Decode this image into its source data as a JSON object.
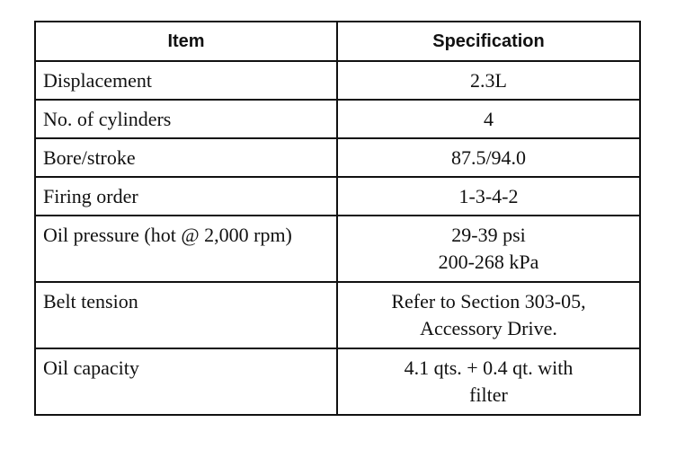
{
  "table": {
    "headers": [
      "Item",
      "Specification"
    ],
    "rows": [
      {
        "item": "Displacement",
        "spec": [
          "2.3L"
        ]
      },
      {
        "item": "No. of cylinders",
        "spec": [
          "4"
        ]
      },
      {
        "item": "Bore/stroke",
        "spec": [
          "87.5/94.0"
        ]
      },
      {
        "item": "Firing order",
        "spec": [
          "1-3-4-2"
        ]
      },
      {
        "item": "Oil pressure (hot @ 2,000 rpm)",
        "spec": [
          "29-39 psi",
          "200-268 kPa"
        ]
      },
      {
        "item": "Belt tension",
        "spec": [
          "Refer to Section 303-05,",
          "Accessory Drive."
        ]
      },
      {
        "item": "Oil capacity",
        "spec": [
          "4.1 qts. + 0.4 qt. with",
          "filter"
        ]
      }
    ]
  }
}
